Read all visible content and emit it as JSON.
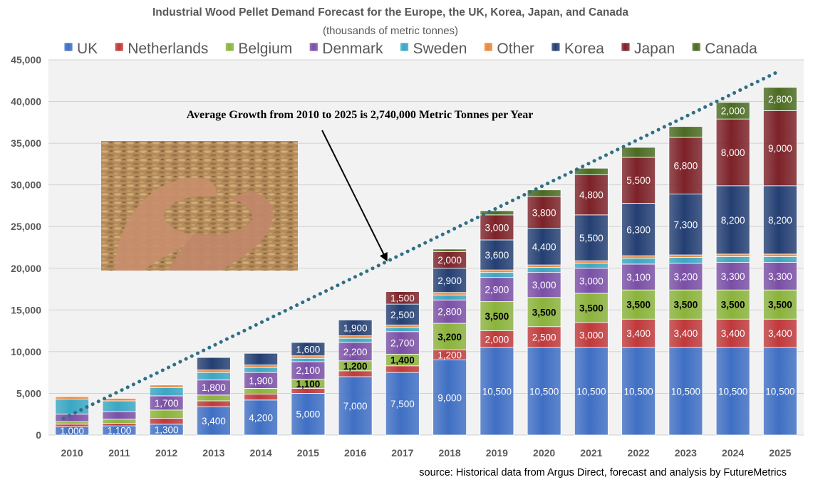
{
  "chart_data": {
    "type": "bar",
    "stacked": true,
    "title": "Industrial Wood Pellet Demand Forecast for the Europe, the UK, Korea, Japan, and Canada",
    "subtitle": "(thousands of metric tonnes)",
    "ylim": [
      0,
      45000
    ],
    "yticks": [
      0,
      5000,
      10000,
      15000,
      20000,
      25000,
      30000,
      35000,
      40000,
      45000
    ],
    "ytick_labels": [
      "0",
      "5,000",
      "10,000",
      "15,000",
      "20,000",
      "25,000",
      "30,000",
      "35,000",
      "40,000",
      "45,000"
    ],
    "grid": true,
    "legend_position": "top",
    "categories": [
      "2010",
      "2011",
      "2012",
      "2013",
      "2014",
      "2015",
      "2016",
      "2017",
      "2018",
      "2019",
      "2020",
      "2021",
      "2022",
      "2023",
      "2024",
      "2025"
    ],
    "series": [
      {
        "name": "UK",
        "color": "#3f6fc4",
        "values": [
          1000,
          1100,
          1300,
          3400,
          4200,
          5000,
          7000,
          7500,
          9000,
          10500,
          10500,
          10500,
          10500,
          10500,
          10500,
          10500
        ],
        "labels": [
          "1,000",
          "1,100",
          "1,300",
          "3,400",
          "4,200",
          "5,000",
          "7,000",
          "7,500",
          "9,000",
          "10,500",
          "10,500",
          "10,500",
          "10,500",
          "10,500",
          "10,500",
          "10,500"
        ]
      },
      {
        "name": "Netherlands",
        "color": "#c0393b",
        "values": [
          300,
          300,
          700,
          700,
          700,
          600,
          700,
          800,
          1200,
          2000,
          2500,
          3000,
          3400,
          3400,
          3400,
          3400
        ],
        "labels": [
          "",
          "",
          "",
          "",
          "",
          "",
          "",
          "",
          "1,200",
          "2,000",
          "2,500",
          "3,000",
          "3,400",
          "3,400",
          "3,400",
          "3,400"
        ]
      },
      {
        "name": "Belgium",
        "color": "#8bb33c",
        "values": [
          300,
          500,
          1000,
          700,
          700,
          1100,
          1200,
          1400,
          3200,
          3500,
          3500,
          3500,
          3500,
          3500,
          3500,
          3500
        ],
        "labels": [
          "",
          "",
          "",
          "",
          "",
          "1,100",
          "1,200",
          "1,400",
          "3,200",
          "3,500",
          "3,500",
          "3,500",
          "3,500",
          "3,500",
          "3,500",
          "3,500"
        ]
      },
      {
        "name": "Denmark",
        "color": "#7a4fa6",
        "values": [
          900,
          900,
          1700,
          1800,
          1900,
          2100,
          2200,
          2700,
          2800,
          2900,
          3000,
          3000,
          3100,
          3200,
          3300,
          3300
        ],
        "labels": [
          "",
          "",
          "1,700",
          "1,800",
          "1,900",
          "2,100",
          "2,200",
          "2,700",
          "2,800",
          "2,900",
          "3,000",
          "3,000",
          "3,100",
          "3,200",
          "3,300",
          "3,300"
        ]
      },
      {
        "name": "Sweden",
        "color": "#3aa7c4",
        "values": [
          1800,
          1300,
          1000,
          900,
          600,
          400,
          500,
          500,
          600,
          600,
          600,
          600,
          700,
          700,
          700,
          700
        ],
        "labels": [
          "",
          "",
          "",
          "",
          "",
          "",
          "",
          "",
          "",
          "",
          "",
          "",
          "",
          "",
          "",
          ""
        ]
      },
      {
        "name": "Other",
        "color": "#e8883a",
        "values": [
          300,
          300,
          300,
          300,
          300,
          300,
          300,
          300,
          300,
          300,
          300,
          300,
          300,
          300,
          300,
          300
        ],
        "labels": [
          "",
          "",
          "",
          "",
          "",
          "",
          "",
          "",
          "",
          "",
          "",
          "",
          "",
          "",
          "",
          ""
        ]
      },
      {
        "name": "Korea",
        "color": "#243f73",
        "values": [
          0,
          0,
          0,
          1500,
          1400,
          1600,
          1900,
          2500,
          2900,
          3600,
          4400,
          5500,
          6300,
          7300,
          8200,
          8200
        ],
        "labels": [
          "",
          "",
          "",
          "",
          "",
          "1,600",
          "1,900",
          "2,500",
          "2,900",
          "3,600",
          "4,400",
          "5,500",
          "6,300",
          "7,300",
          "8,200",
          "8,200"
        ]
      },
      {
        "name": "Japan",
        "color": "#7c2228",
        "values": [
          0,
          0,
          0,
          0,
          0,
          0,
          0,
          1500,
          2000,
          3000,
          3800,
          4800,
          5500,
          6800,
          8000,
          9000
        ],
        "labels": [
          "",
          "",
          "",
          "",
          "",
          "",
          "",
          "1,500",
          "2,000",
          "3,000",
          "3,800",
          "4,800",
          "5,500",
          "6,800",
          "8,000",
          "9,000"
        ]
      },
      {
        "name": "Canada",
        "color": "#4b6b22",
        "values": [
          0,
          0,
          0,
          0,
          0,
          0,
          0,
          0,
          300,
          500,
          800,
          800,
          1200,
          1300,
          2000,
          2800
        ],
        "labels": [
          "",
          "",
          "",
          "",
          "",
          "",
          "",
          "",
          "",
          "",
          "",
          "",
          "",
          "",
          "2,000",
          "2,800"
        ]
      }
    ],
    "annotations": [
      {
        "text": "Average Growth from 2010 to 2025 is 2,740,000 Metric Tonnes per Year"
      }
    ],
    "trendline": {
      "style": "dotted",
      "color": "#2e6f86",
      "x_start": "2010",
      "y_start": 2000,
      "x_end": "2025",
      "y_end": 43700
    }
  },
  "source_text": "source: Historical data from Argus Direct, forecast and analysis by FutureMetrics"
}
